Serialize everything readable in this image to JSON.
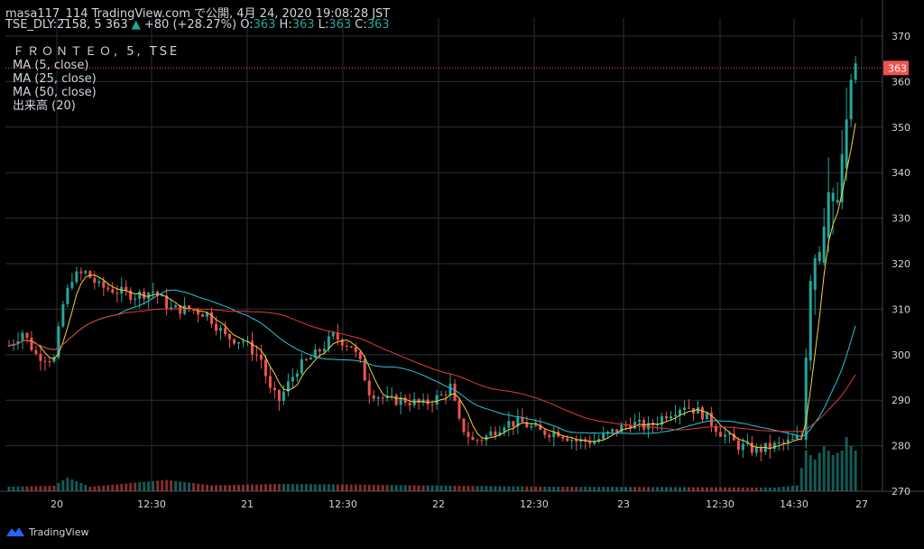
{
  "header": {
    "line1": "masa117_114 TradingView.com で公開, 4月 24, 2020 19:08:28 JST",
    "line2_prefix": "TSE_DLY:2158, 5 363",
    "change": "+80 (+28.27%)",
    "o_label": "O:",
    "o": "363",
    "h_label": "H:",
    "h": "363",
    "l_label": "L:",
    "l": "363",
    "c_label": "C:",
    "c": "363"
  },
  "legend": {
    "title": "ＦＲＯＮＴＥＯ, 5, TSE",
    "items": [
      "MA (5, close)",
      "MA (25, close)",
      "MA (50, close)",
      "出来高 (20)"
    ]
  },
  "footer": {
    "brand": "TradingView"
  },
  "colors": {
    "up": "#26a69a",
    "down": "#ef5350",
    "ma5": "#f5d33b",
    "ma25": "#26c6da",
    "ma50": "#e53935",
    "grid": "#2a2e39",
    "text": "#d1d4dc"
  },
  "chart_data": {
    "type": "candlestick",
    "y_axis": {
      "min": 270,
      "max": 370,
      "ticks": [
        270,
        280,
        290,
        300,
        310,
        320,
        330,
        340,
        350,
        360,
        370
      ]
    },
    "x_ticks": [
      "20",
      "12:30",
      "21",
      "12:30",
      "22",
      "12:30",
      "23",
      "12:30",
      "14:30",
      "27"
    ],
    "last_price": {
      "value": 363,
      "label": "363"
    },
    "price_anchors": [
      [
        0,
        302
      ],
      [
        3,
        305
      ],
      [
        6,
        300
      ],
      [
        10,
        299
      ],
      [
        12,
        311
      ],
      [
        14,
        317
      ],
      [
        17,
        318
      ],
      [
        20,
        315
      ],
      [
        24,
        314
      ],
      [
        28,
        313
      ],
      [
        32,
        314
      ],
      [
        36,
        310
      ],
      [
        40,
        310
      ],
      [
        44,
        309
      ],
      [
        48,
        304
      ],
      [
        52,
        303
      ],
      [
        56,
        299
      ],
      [
        58,
        292
      ],
      [
        60,
        290
      ],
      [
        64,
        297
      ],
      [
        68,
        300
      ],
      [
        72,
        304
      ],
      [
        76,
        302
      ],
      [
        78,
        298
      ],
      [
        80,
        292
      ],
      [
        84,
        290
      ],
      [
        88,
        290
      ],
      [
        92,
        289
      ],
      [
        96,
        291
      ],
      [
        98,
        293
      ],
      [
        100,
        285
      ],
      [
        103,
        281
      ],
      [
        106,
        282
      ],
      [
        110,
        285
      ],
      [
        114,
        285
      ],
      [
        118,
        283
      ],
      [
        122,
        283
      ],
      [
        126,
        281
      ],
      [
        130,
        281
      ],
      [
        134,
        283
      ],
      [
        138,
        285
      ],
      [
        142,
        284
      ],
      [
        146,
        287
      ],
      [
        150,
        289
      ],
      [
        154,
        287
      ],
      [
        158,
        283
      ],
      [
        162,
        280
      ],
      [
        166,
        279
      ],
      [
        170,
        280
      ],
      [
        174,
        281
      ],
      [
        176,
        282
      ],
      [
        178,
        319
      ],
      [
        180,
        326
      ],
      [
        182,
        333
      ],
      [
        184,
        336
      ],
      [
        186,
        350
      ],
      [
        187,
        360
      ],
      [
        188,
        363
      ]
    ],
    "volume_anchors": [
      [
        0,
        1.0
      ],
      [
        10,
        1.2
      ],
      [
        13,
        3.0
      ],
      [
        18,
        1.0
      ],
      [
        35,
        2.5
      ],
      [
        45,
        1.3
      ],
      [
        60,
        1.6
      ],
      [
        75,
        1.5
      ],
      [
        100,
        1.2
      ],
      [
        120,
        1.0
      ],
      [
        150,
        0.9
      ],
      [
        170,
        0.8
      ],
      [
        175,
        1.3
      ],
      [
        177,
        9
      ],
      [
        179,
        7
      ],
      [
        181,
        10
      ],
      [
        183,
        8
      ],
      [
        185,
        9
      ],
      [
        186,
        12
      ],
      [
        187,
        10
      ],
      [
        188,
        9
      ]
    ]
  }
}
